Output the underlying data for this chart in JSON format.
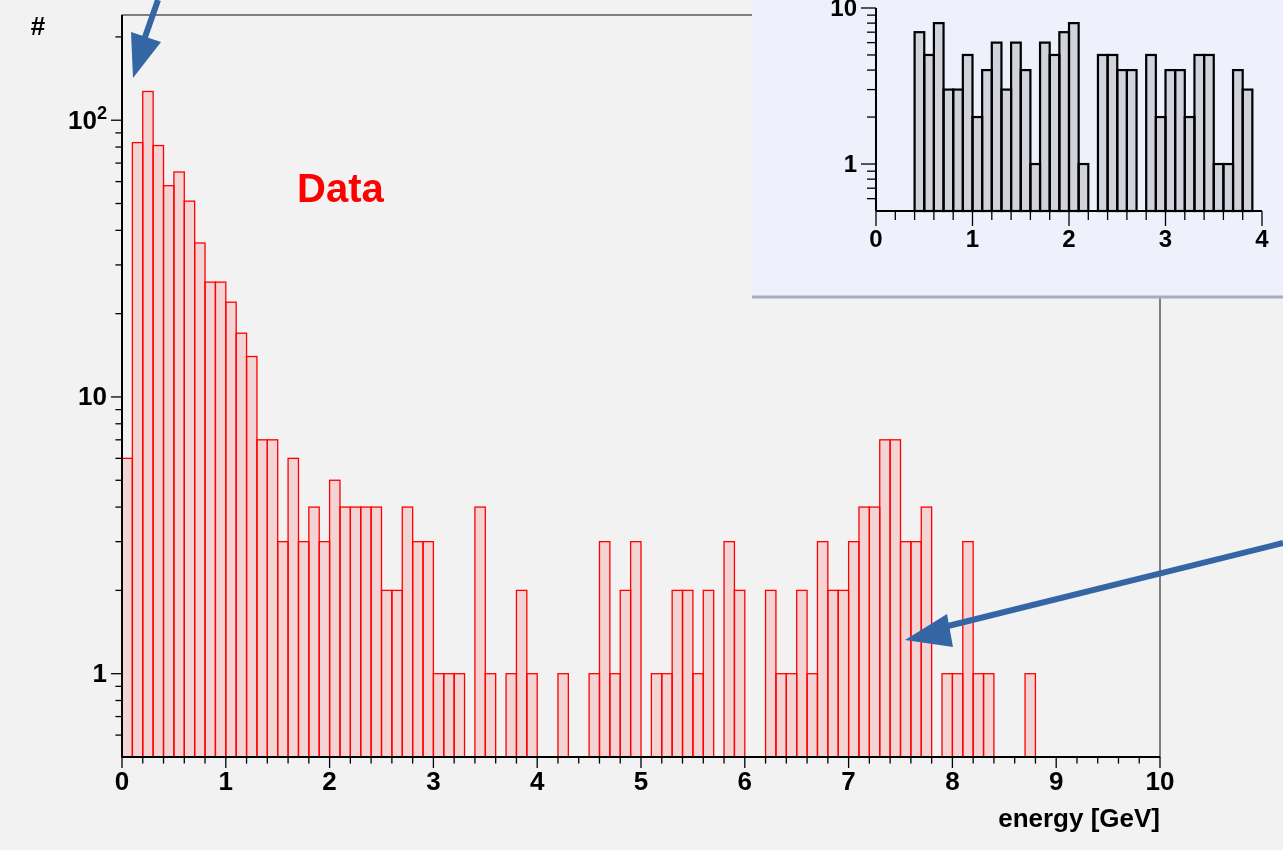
{
  "chart_data": [
    {
      "type": "histogram",
      "xlabel": "energy [GeV]",
      "ylabel": "#",
      "annotations": [
        "Data"
      ],
      "log": "y",
      "grid": false,
      "color": "#ff0000",
      "bins": [
        0,
        0.1,
        0.2,
        0.3,
        0.4,
        0.5,
        0.6,
        0.7,
        0.8,
        0.9,
        1,
        1.1,
        1.2,
        1.3,
        1.4,
        1.5,
        1.6,
        1.7,
        1.8,
        1.9,
        2,
        2.1,
        2.2,
        2.3,
        2.4,
        2.5,
        2.6,
        2.7,
        2.8,
        2.9,
        3,
        3.1,
        3.2,
        3.3,
        3.4,
        3.5,
        3.6,
        3.7,
        3.8,
        3.9,
        4,
        4.1,
        4.2,
        4.3,
        4.4,
        4.5,
        4.6,
        4.7,
        4.8,
        4.9,
        5,
        5.1,
        5.2,
        5.3,
        5.4,
        5.5,
        5.6,
        5.7,
        5.8,
        5.9,
        6,
        6.1,
        6.2,
        6.3,
        6.4,
        6.5,
        6.6,
        6.7,
        6.8,
        6.9,
        7,
        7.1,
        7.2,
        7.3,
        7.4,
        7.5,
        7.6,
        7.7,
        7.8,
        7.9,
        8,
        8.1,
        8.2,
        8.3,
        8.4,
        8.5,
        8.6,
        8.7,
        8.8,
        8.9,
        9,
        9.1,
        9.2,
        9.3,
        9.4,
        9.5,
        9.6,
        9.7,
        9.8,
        9.9,
        10
      ],
      "values": [
        6,
        83,
        127,
        81,
        58,
        65,
        51,
        36,
        26,
        26,
        22,
        17,
        14,
        7,
        7,
        3,
        6,
        3,
        4,
        3,
        5,
        4,
        4,
        4,
        4,
        2,
        2,
        4,
        3,
        3,
        1,
        1,
        1,
        null,
        4,
        1,
        null,
        1,
        2,
        1,
        null,
        null,
        1,
        null,
        null,
        1,
        3,
        1,
        2,
        3,
        null,
        1,
        1,
        2,
        2,
        1,
        2,
        null,
        3,
        2,
        null,
        null,
        2,
        1,
        1,
        2,
        1,
        3,
        2,
        2,
        3,
        4,
        4,
        7,
        7,
        3,
        3,
        4,
        null,
        1,
        1,
        3,
        1,
        1,
        null,
        null,
        null,
        1,
        null,
        null,
        null,
        null,
        null,
        null,
        null,
        null,
        null,
        null,
        null,
        null
      ],
      "xlim": [
        0,
        10
      ],
      "ylim": [
        0.5,
        240
      ],
      "xticks": [
        0,
        {
          "value": 0.2,
          "label": null
        },
        {
          "value": 0.4,
          "label": null
        },
        {
          "value": 0.6,
          "label": null
        },
        {
          "value": 0.8,
          "label": null
        },
        1,
        {
          "value": 1.2,
          "label": null
        },
        {
          "value": 1.4,
          "label": null
        },
        {
          "value": 1.6,
          "label": null
        },
        {
          "value": 1.8,
          "label": null
        },
        2,
        {
          "value": 2.2,
          "label": null
        },
        {
          "value": 2.4,
          "label": null
        },
        {
          "value": 2.6,
          "label": null
        },
        {
          "value": 2.8,
          "label": null
        },
        3,
        {
          "value": 3.2,
          "label": null
        },
        {
          "value": 3.4,
          "label": null
        },
        {
          "value": 3.6,
          "label": null
        },
        {
          "value": 3.8,
          "label": null
        },
        4,
        {
          "value": 4.2,
          "label": null
        },
        {
          "value": 4.4,
          "label": null
        },
        {
          "value": 4.6,
          "label": null
        },
        {
          "value": 4.8,
          "label": null
        },
        5,
        {
          "value": 5.2,
          "label": null
        },
        {
          "value": 5.4,
          "label": null
        },
        {
          "value": 5.6,
          "label": null
        },
        {
          "value": 5.8,
          "label": null
        },
        6,
        {
          "value": 6.2,
          "label": null
        },
        {
          "value": 6.4,
          "label": null
        },
        {
          "value": 6.6,
          "label": null
        },
        {
          "value": 6.8,
          "label": null
        },
        7,
        {
          "value": 7.2,
          "label": null
        },
        {
          "value": 7.4,
          "label": null
        },
        {
          "value": 7.6,
          "label": null
        },
        {
          "value": 7.8,
          "label": null
        },
        8,
        {
          "value": 8.2,
          "label": null
        },
        {
          "value": 8.4,
          "label": null
        },
        {
          "value": 8.6,
          "label": null
        },
        {
          "value": 8.8,
          "label": null
        },
        9,
        {
          "value": 9.2,
          "label": null
        },
        {
          "value": 9.4,
          "label": null
        },
        {
          "value": 9.6,
          "label": null
        },
        {
          "value": 9.8,
          "label": null
        },
        10
      ],
      "yticks": [
        {
          "value": 0.6,
          "label": null
        },
        {
          "value": 0.7,
          "label": null
        },
        {
          "value": 0.8,
          "label": null
        },
        {
          "value": 0.9,
          "label": null
        },
        {
          "value": 1,
          "label": "1"
        },
        {
          "value": 2,
          "label": null
        },
        {
          "value": 3,
          "label": null
        },
        {
          "value": 4,
          "label": null
        },
        {
          "value": 5,
          "label": null
        },
        {
          "value": 6,
          "label": null
        },
        {
          "value": 7,
          "label": null
        },
        {
          "value": 8,
          "label": null
        },
        {
          "value": 9,
          "label": null
        },
        {
          "value": 10,
          "label": "10"
        },
        {
          "value": 20,
          "label": null
        },
        {
          "value": 30,
          "label": null
        },
        {
          "value": 40,
          "label": null
        },
        {
          "value": 50,
          "label": null
        },
        {
          "value": 60,
          "label": null
        },
        {
          "value": 70,
          "label": null
        },
        {
          "value": 80,
          "label": null
        },
        {
          "value": 90,
          "label": null
        },
        {
          "value": 100,
          "label": "10$^{2}$"
        },
        {
          "value": 200,
          "label": null
        }
      ]
    },
    {
      "type": "histogram",
      "log": "y",
      "grid": false,
      "color": "#000000",
      "bins": [
        0,
        0.1,
        0.2,
        0.3,
        0.4,
        0.5,
        0.6,
        0.7,
        0.8,
        0.9,
        1,
        1.1,
        1.2,
        1.3,
        1.4,
        1.5,
        1.6,
        1.7,
        1.8,
        1.9,
        2,
        2.1,
        2.2,
        2.3,
        2.4,
        2.5,
        2.6,
        2.7,
        2.8,
        2.9,
        3,
        3.1,
        3.2,
        3.3,
        3.4,
        3.5,
        3.6,
        3.7,
        3.8,
        3.9,
        4
      ],
      "values": [
        null,
        null,
        null,
        null,
        7,
        5,
        8,
        3,
        3,
        5,
        2,
        4,
        6,
        3,
        6,
        4,
        1,
        6,
        5,
        7,
        8,
        1,
        null,
        5,
        5,
        4,
        4,
        null,
        5,
        2,
        4,
        4,
        2,
        5,
        5,
        1,
        1,
        4,
        3,
        null
      ],
      "xlim": [
        0,
        4
      ],
      "ylim": [
        0.5,
        10
      ],
      "xticks": [
        0,
        {
          "value": 0.2,
          "label": null
        },
        {
          "value": 0.4,
          "label": null
        },
        {
          "value": 0.6,
          "label": null
        },
        {
          "value": 0.8,
          "label": null
        },
        1,
        {
          "value": 1.2,
          "label": null
        },
        {
          "value": 1.4,
          "label": null
        },
        {
          "value": 1.6,
          "label": null
        },
        {
          "value": 1.8,
          "label": null
        },
        2,
        {
          "value": 2.2,
          "label": null
        },
        {
          "value": 2.4,
          "label": null
        },
        {
          "value": 2.6,
          "label": null
        },
        {
          "value": 2.8,
          "label": null
        },
        3,
        {
          "value": 3.2,
          "label": null
        },
        {
          "value": 3.4,
          "label": null
        },
        {
          "value": 3.6,
          "label": null
        },
        {
          "value": 3.8,
          "label": null
        },
        4
      ],
      "yticks": [
        {
          "value": 0.6,
          "label": null
        },
        {
          "value": 0.7,
          "label": null
        },
        {
          "value": 0.8,
          "label": null
        },
        {
          "value": 0.9,
          "label": null
        },
        {
          "value": 1,
          "label": "1"
        },
        {
          "value": 2,
          "label": null
        },
        {
          "value": 3,
          "label": null
        },
        {
          "value": 4,
          "label": null
        },
        {
          "value": 5,
          "label": null
        },
        {
          "value": 6,
          "label": null
        },
        {
          "value": 7,
          "label": null
        },
        {
          "value": 8,
          "label": null
        },
        {
          "value": 9,
          "label": null
        },
        {
          "value": 10,
          "label": "10"
        }
      ]
    }
  ]
}
